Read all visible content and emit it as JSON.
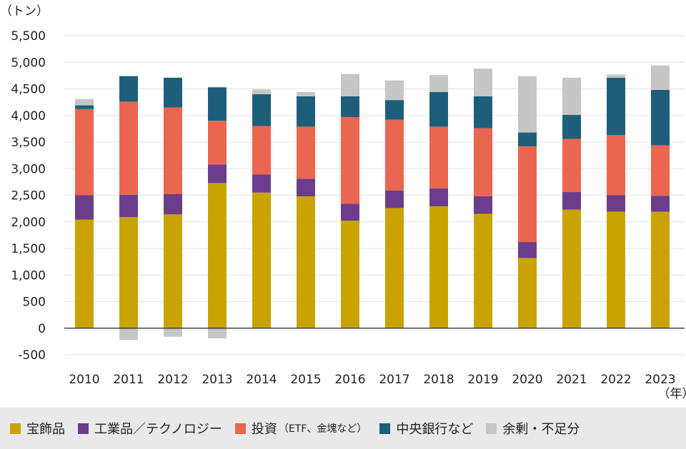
{
  "chart_data": {
    "type": "bar",
    "stacked": true,
    "y_unit": "（トン）",
    "x_unit": "（年）",
    "ylim": [
      -500,
      5500
    ],
    "yticks": [
      "-500",
      "0",
      "500",
      "1,000",
      "1,500",
      "2,000",
      "2,500",
      "3,000",
      "3,500",
      "4,000",
      "4,500",
      "5,000",
      "5,500"
    ],
    "ytick_values": [
      -500,
      0,
      500,
      1000,
      1500,
      2000,
      2500,
      3000,
      3500,
      4000,
      4500,
      5000,
      5500
    ],
    "categories": [
      "2010",
      "2011",
      "2012",
      "2013",
      "2014",
      "2015",
      "2016",
      "2017",
      "2018",
      "2019",
      "2020",
      "2021",
      "2022",
      "2023"
    ],
    "series": [
      {
        "name": "宝飾品",
        "color": "#c9a400",
        "values": [
          2040,
          2090,
          2140,
          2730,
          2550,
          2480,
          2020,
          2260,
          2290,
          2150,
          1320,
          2230,
          2190,
          2190
        ]
      },
      {
        "name": "工業品／テクノロジー",
        "color": "#6b3d8a",
        "values": [
          460,
          420,
          380,
          350,
          340,
          330,
          320,
          330,
          340,
          330,
          300,
          330,
          310,
          300
        ]
      },
      {
        "name": "投資",
        "note": "（ETF、金塊など）",
        "color": "#ea6650",
        "values": [
          1620,
          1750,
          1630,
          820,
          910,
          980,
          1630,
          1330,
          1160,
          1280,
          1800,
          1000,
          1130,
          950
        ]
      },
      {
        "name": "中央銀行など",
        "color": "#1f5e7a",
        "values": [
          70,
          480,
          560,
          630,
          600,
          570,
          390,
          370,
          650,
          600,
          260,
          450,
          1080,
          1040
        ]
      },
      {
        "name": "余剰・不足分",
        "color": "#c6c6c6",
        "values": [
          120,
          -220,
          -160,
          -190,
          90,
          80,
          420,
          370,
          320,
          520,
          1060,
          700,
          60,
          460
        ]
      }
    ],
    "grid": true,
    "legend_position": "bottom"
  }
}
